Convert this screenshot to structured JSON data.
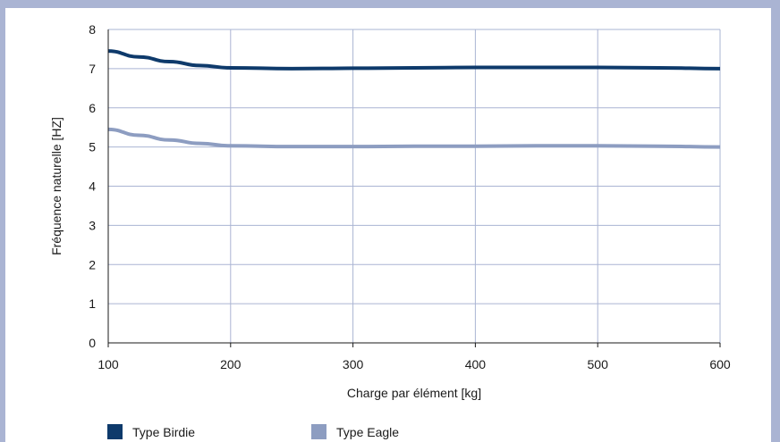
{
  "chart_data": {
    "type": "line",
    "xlabel": "Charge par élément [kg]",
    "ylabel": "Fréquence naturelle  [HZ]",
    "xlim": [
      100,
      600
    ],
    "ylim": [
      0,
      8
    ],
    "xticks": [
      100,
      200,
      300,
      400,
      500,
      600
    ],
    "yticks": [
      0,
      1,
      2,
      3,
      4,
      5,
      6,
      7,
      8
    ],
    "grid": true,
    "legend_position": "bottom",
    "series": [
      {
        "name": "Type Birdie",
        "color": "#0e3a6b",
        "x": [
          100,
          125,
          150,
          175,
          200,
          250,
          300,
          350,
          400,
          450,
          500,
          550,
          600
        ],
        "y": [
          7.45,
          7.3,
          7.18,
          7.08,
          7.02,
          7.0,
          7.01,
          7.02,
          7.03,
          7.03,
          7.03,
          7.02,
          7.0
        ]
      },
      {
        "name": "Type Eagle",
        "color": "#8d9dc1",
        "x": [
          100,
          125,
          150,
          175,
          200,
          250,
          300,
          350,
          400,
          450,
          500,
          550,
          600
        ],
        "y": [
          5.45,
          5.3,
          5.18,
          5.09,
          5.03,
          5.01,
          5.01,
          5.02,
          5.02,
          5.03,
          5.03,
          5.02,
          5.0
        ]
      }
    ]
  }
}
